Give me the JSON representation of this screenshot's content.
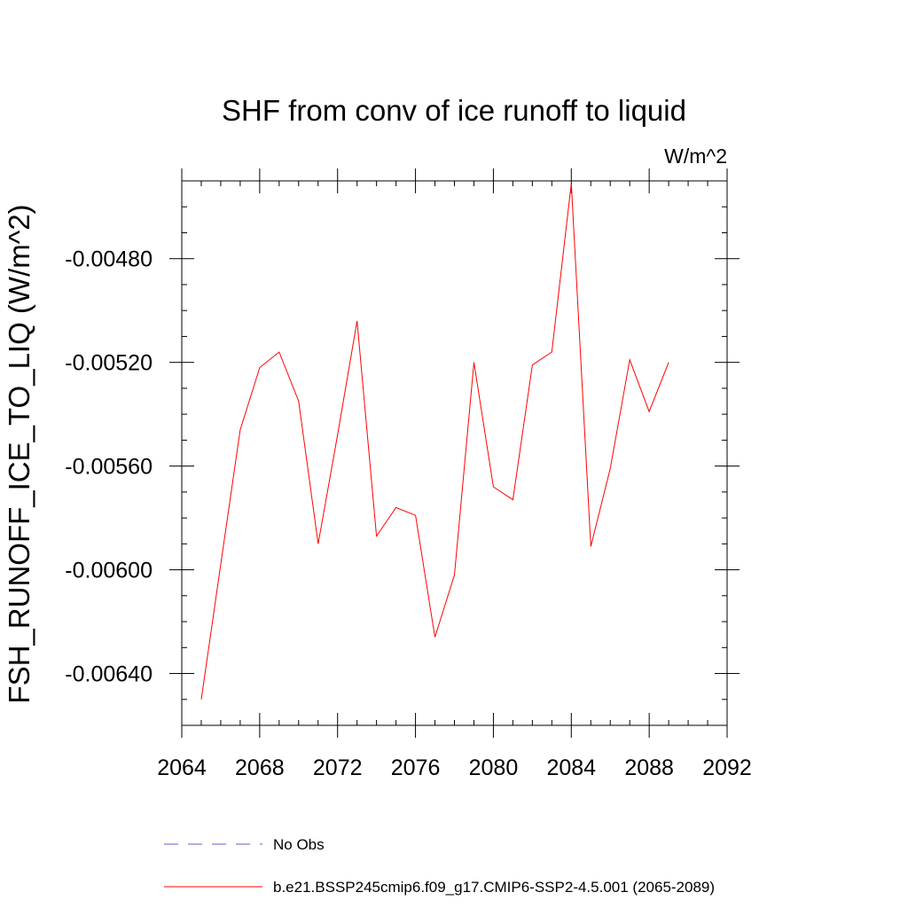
{
  "chart_data": {
    "type": "line",
    "title": "SHF from conv of ice runoff to liquid",
    "units": "W/m^2",
    "xlabel": "",
    "ylabel": "FSH_RUNOFF_ICE_TO_LIQ  (W/m^2)",
    "xlim": [
      2064,
      2092
    ],
    "ylim": [
      -0.0066,
      -0.0045
    ],
    "x_ticks": [
      "2064",
      "2068",
      "2072",
      "2076",
      "2080",
      "2084",
      "2088",
      "2092"
    ],
    "y_ticks": [
      "-0.00480",
      "-0.00520",
      "-0.00560",
      "-0.00600",
      "-0.00640"
    ],
    "grid": false,
    "legend_position": "bottom",
    "series": [
      {
        "name": "b.e21.BSSP245cmip6.f09_g17.CMIP6-SSP2-4.5.001 (2065-2089)",
        "color": "#ff0000",
        "style": "solid",
        "x": [
          2065,
          2066,
          2067,
          2068,
          2069,
          2070,
          2071,
          2072,
          2073,
          2074,
          2075,
          2076,
          2077,
          2078,
          2079,
          2080,
          2081,
          2082,
          2083,
          2084,
          2085,
          2086,
          2087,
          2088,
          2089
        ],
        "y": [
          -0.0065,
          -0.00598,
          -0.00546,
          -0.00522,
          -0.00516,
          -0.00535,
          -0.0059,
          -0.00548,
          -0.00504,
          -0.00587,
          -0.00576,
          -0.00579,
          -0.00626,
          -0.00602,
          -0.0052,
          -0.00568,
          -0.00573,
          -0.00521,
          -0.00516,
          -0.00451,
          -0.00591,
          -0.00561,
          -0.00519,
          -0.00539,
          -0.0052
        ]
      },
      {
        "name": "No Obs",
        "color": "#6a5acd",
        "style": "dashed",
        "x": [],
        "y": []
      }
    ]
  },
  "legend": {
    "items": [
      {
        "label": "No Obs",
        "color": "#6a5acd",
        "style": "dashed"
      },
      {
        "label": "b.e21.BSSP245cmip6.f09_g17.CMIP6-SSP2-4.5.001 (2065-2089)",
        "color": "#ff0000",
        "style": "solid"
      }
    ]
  }
}
